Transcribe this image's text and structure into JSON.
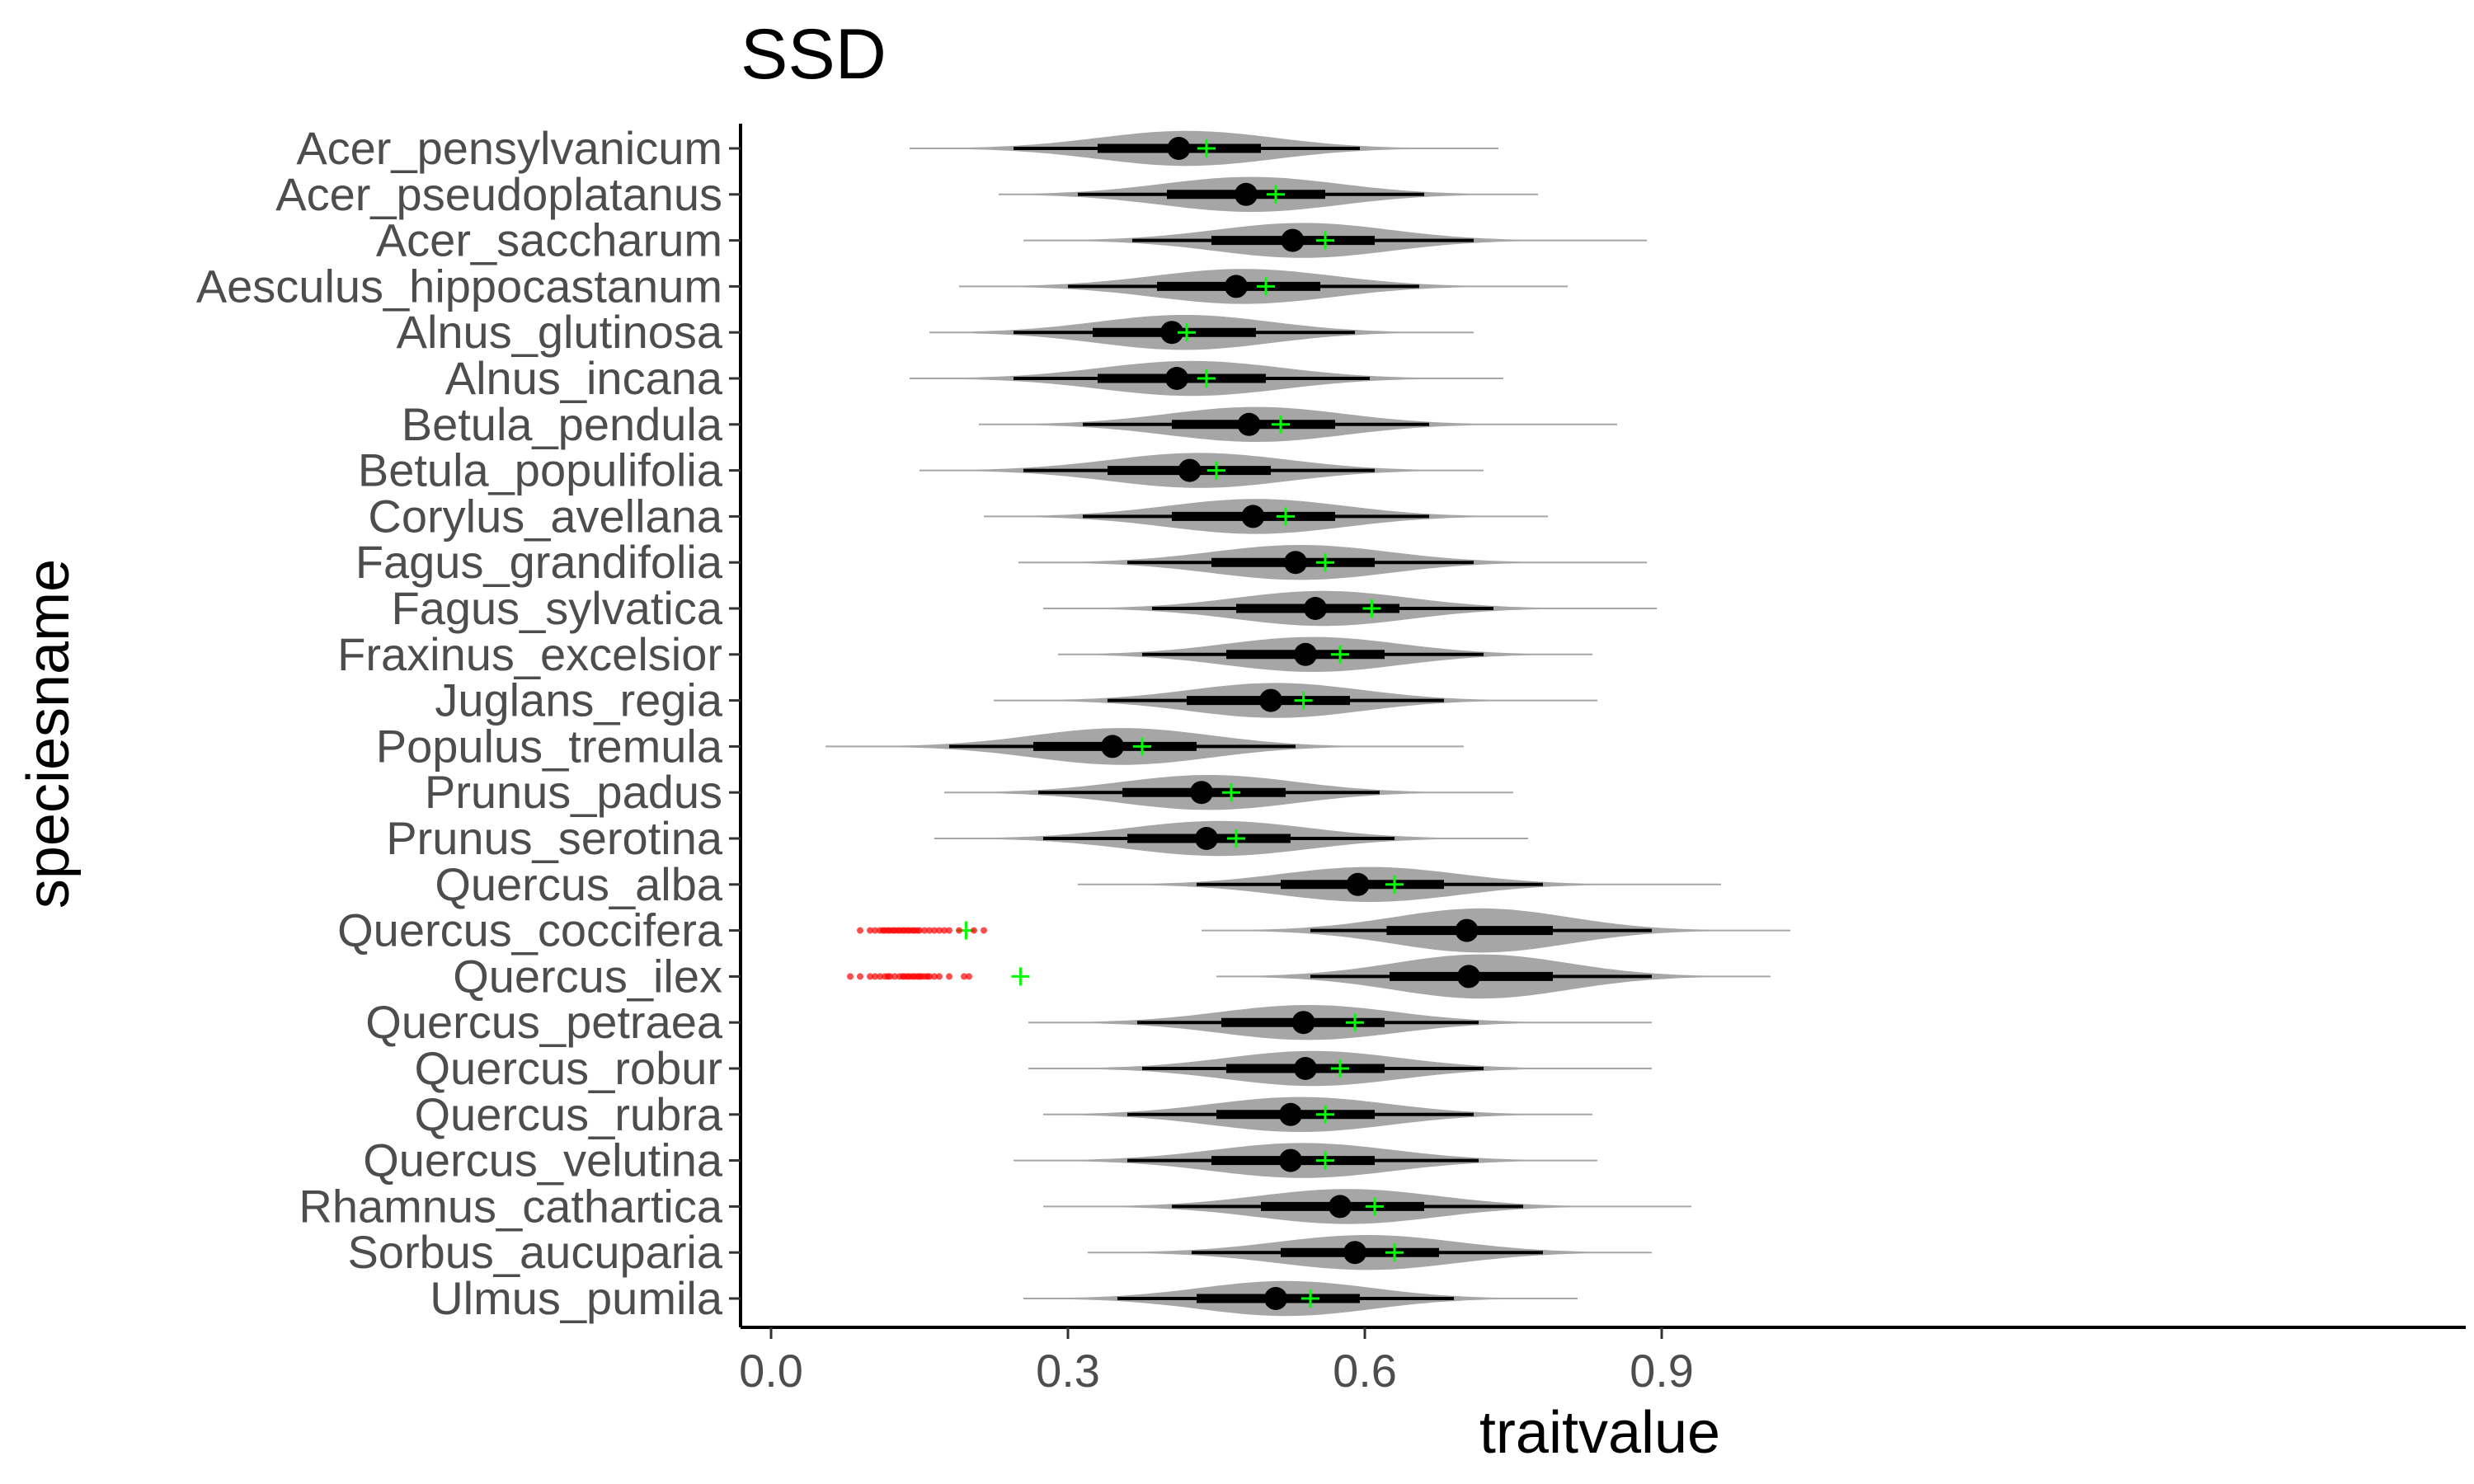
{
  "chart_data": {
    "type": "violin",
    "title": "SSD",
    "xlabel": "traitvalue",
    "ylabel": "speciesname",
    "xlim": [
      -0.03,
      1.15
    ],
    "xticks": [
      0.0,
      0.3,
      0.6,
      0.9
    ],
    "xtick_labels": [
      "0.0",
      "0.3",
      "0.6",
      "0.9"
    ],
    "grid": false,
    "colors": {
      "violin": "#a6a6a6",
      "median_point": "#000000",
      "interval": "#000000",
      "mean_marker": "#00ff00",
      "outliers": "#ff0000"
    },
    "species": [
      {
        "name": "Ulmus_pumila",
        "median": 0.51,
        "mean": 0.545,
        "iqr": [
          0.43,
          0.595
        ],
        "range95": [
          0.35,
          0.69
        ],
        "tail": [
          0.255,
          0.815
        ],
        "halfwidth": 0.38
      },
      {
        "name": "Sorbus_aucuparia",
        "median": 0.59,
        "mean": 0.63,
        "iqr": [
          0.515,
          0.675
        ],
        "range95": [
          0.425,
          0.78
        ],
        "tail": [
          0.32,
          0.89
        ],
        "halfwidth": 0.38
      },
      {
        "name": "Rhamnus_cathartica",
        "median": 0.575,
        "mean": 0.61,
        "iqr": [
          0.495,
          0.66
        ],
        "range95": [
          0.405,
          0.76
        ],
        "tail": [
          0.275,
          0.93
        ],
        "halfwidth": 0.38
      },
      {
        "name": "Quercus_velutina",
        "median": 0.525,
        "mean": 0.56,
        "iqr": [
          0.445,
          0.61
        ],
        "range95": [
          0.36,
          0.715
        ],
        "tail": [
          0.245,
          0.835
        ],
        "halfwidth": 0.38
      },
      {
        "name": "Quercus_rubra",
        "median": 0.525,
        "mean": 0.56,
        "iqr": [
          0.45,
          0.61
        ],
        "range95": [
          0.36,
          0.71
        ],
        "tail": [
          0.275,
          0.83
        ],
        "halfwidth": 0.38
      },
      {
        "name": "Quercus_robur",
        "median": 0.54,
        "mean": 0.575,
        "iqr": [
          0.46,
          0.62
        ],
        "range95": [
          0.375,
          0.72
        ],
        "tail": [
          0.26,
          0.89
        ],
        "halfwidth": 0.38
      },
      {
        "name": "Quercus_petraea",
        "median": 0.538,
        "mean": 0.59,
        "iqr": [
          0.455,
          0.62
        ],
        "range95": [
          0.37,
          0.715
        ],
        "tail": [
          0.26,
          0.89
        ],
        "halfwidth": 0.38
      },
      {
        "name": "Quercus_ilex",
        "median": 0.705,
        "mean": 0.252,
        "iqr": [
          0.625,
          0.79
        ],
        "range95": [
          0.545,
          0.89
        ],
        "tail": [
          0.45,
          1.01
        ],
        "halfwidth": 0.48
      },
      {
        "name": "Quercus_coccifera",
        "median": 0.703,
        "mean": 0.197,
        "iqr": [
          0.622,
          0.79
        ],
        "range95": [
          0.545,
          0.89
        ],
        "tail": [
          0.435,
          1.03
        ],
        "halfwidth": 0.48
      },
      {
        "name": "Quercus_alba",
        "median": 0.593,
        "mean": 0.63,
        "iqr": [
          0.515,
          0.68
        ],
        "range95": [
          0.43,
          0.78
        ],
        "tail": [
          0.31,
          0.96
        ],
        "halfwidth": 0.38
      },
      {
        "name": "Prunus_serotina",
        "median": 0.44,
        "mean": 0.47,
        "iqr": [
          0.36,
          0.525
        ],
        "range95": [
          0.275,
          0.63
        ],
        "tail": [
          0.165,
          0.765
        ],
        "halfwidth": 0.38
      },
      {
        "name": "Prunus_padus",
        "median": 0.435,
        "mean": 0.465,
        "iqr": [
          0.355,
          0.52
        ],
        "range95": [
          0.27,
          0.615
        ],
        "tail": [
          0.175,
          0.75
        ],
        "halfwidth": 0.38
      },
      {
        "name": "Populus_tremula",
        "median": 0.345,
        "mean": 0.375,
        "iqr": [
          0.265,
          0.43
        ],
        "range95": [
          0.18,
          0.53
        ],
        "tail": [
          0.055,
          0.7
        ],
        "halfwidth": 0.4
      },
      {
        "name": "Juglans_regia",
        "median": 0.505,
        "mean": 0.538,
        "iqr": [
          0.42,
          0.585
        ],
        "range95": [
          0.34,
          0.68
        ],
        "tail": [
          0.225,
          0.835
        ],
        "halfwidth": 0.38
      },
      {
        "name": "Fraxinus_excelsior",
        "median": 0.54,
        "mean": 0.575,
        "iqr": [
          0.46,
          0.62
        ],
        "range95": [
          0.375,
          0.72
        ],
        "tail": [
          0.29,
          0.83
        ],
        "halfwidth": 0.38
      },
      {
        "name": "Fagus_sylvatica",
        "median": 0.55,
        "mean": 0.607,
        "iqr": [
          0.47,
          0.635
        ],
        "range95": [
          0.385,
          0.73
        ],
        "tail": [
          0.275,
          0.895
        ],
        "halfwidth": 0.38
      },
      {
        "name": "Fagus_grandifolia",
        "median": 0.53,
        "mean": 0.56,
        "iqr": [
          0.445,
          0.61
        ],
        "range95": [
          0.36,
          0.71
        ],
        "tail": [
          0.25,
          0.885
        ],
        "halfwidth": 0.38
      },
      {
        "name": "Corylus_avellana",
        "median": 0.487,
        "mean": 0.52,
        "iqr": [
          0.405,
          0.57
        ],
        "range95": [
          0.315,
          0.665
        ],
        "tail": [
          0.215,
          0.785
        ],
        "halfwidth": 0.38
      },
      {
        "name": "Betula_populifolia",
        "median": 0.423,
        "mean": 0.45,
        "iqr": [
          0.34,
          0.505
        ],
        "range95": [
          0.255,
          0.61
        ],
        "tail": [
          0.15,
          0.72
        ],
        "halfwidth": 0.38
      },
      {
        "name": "Betula_pendula",
        "median": 0.483,
        "mean": 0.515,
        "iqr": [
          0.405,
          0.57
        ],
        "range95": [
          0.315,
          0.665
        ],
        "tail": [
          0.21,
          0.855
        ],
        "halfwidth": 0.38
      },
      {
        "name": "Alnus_incana",
        "median": 0.41,
        "mean": 0.44,
        "iqr": [
          0.33,
          0.5
        ],
        "range95": [
          0.245,
          0.605
        ],
        "tail": [
          0.14,
          0.74
        ],
        "halfwidth": 0.38
      },
      {
        "name": "Alnus_glutinosa",
        "median": 0.405,
        "mean": 0.42,
        "iqr": [
          0.325,
          0.49
        ],
        "range95": [
          0.245,
          0.59
        ],
        "tail": [
          0.16,
          0.71
        ],
        "halfwidth": 0.38
      },
      {
        "name": "Aesculus_hippocastanum",
        "median": 0.47,
        "mean": 0.5,
        "iqr": [
          0.39,
          0.555
        ],
        "range95": [
          0.3,
          0.655
        ],
        "tail": [
          0.19,
          0.805
        ],
        "halfwidth": 0.38
      },
      {
        "name": "Acer_saccharum",
        "median": 0.527,
        "mean": 0.56,
        "iqr": [
          0.445,
          0.61
        ],
        "range95": [
          0.365,
          0.71
        ],
        "tail": [
          0.255,
          0.885
        ],
        "halfwidth": 0.38
      },
      {
        "name": "Acer_pseudoplatanus",
        "median": 0.48,
        "mean": 0.51,
        "iqr": [
          0.4,
          0.56
        ],
        "range95": [
          0.31,
          0.66
        ],
        "tail": [
          0.23,
          0.775
        ],
        "halfwidth": 0.38
      },
      {
        "name": "Acer_pensylvanicum",
        "median": 0.412,
        "mean": 0.44,
        "iqr": [
          0.33,
          0.495
        ],
        "range95": [
          0.245,
          0.595
        ],
        "tail": [
          0.14,
          0.735
        ],
        "halfwidth": 0.38
      }
    ],
    "outliers": [
      {
        "species": "Quercus_ilex",
        "x": [
          0.08,
          0.09,
          0.1,
          0.105,
          0.11,
          0.115,
          0.118,
          0.12,
          0.125,
          0.13,
          0.133,
          0.135,
          0.138,
          0.14,
          0.143,
          0.145,
          0.148,
          0.15,
          0.152,
          0.155,
          0.158,
          0.16,
          0.165,
          0.17,
          0.18,
          0.195,
          0.2
        ]
      },
      {
        "species": "Quercus_coccifera",
        "x": [
          0.09,
          0.1,
          0.105,
          0.11,
          0.113,
          0.115,
          0.118,
          0.12,
          0.123,
          0.125,
          0.128,
          0.13,
          0.133,
          0.135,
          0.138,
          0.14,
          0.143,
          0.145,
          0.148,
          0.15,
          0.155,
          0.16,
          0.165,
          0.17,
          0.175,
          0.18,
          0.19,
          0.205,
          0.215
        ]
      }
    ]
  }
}
